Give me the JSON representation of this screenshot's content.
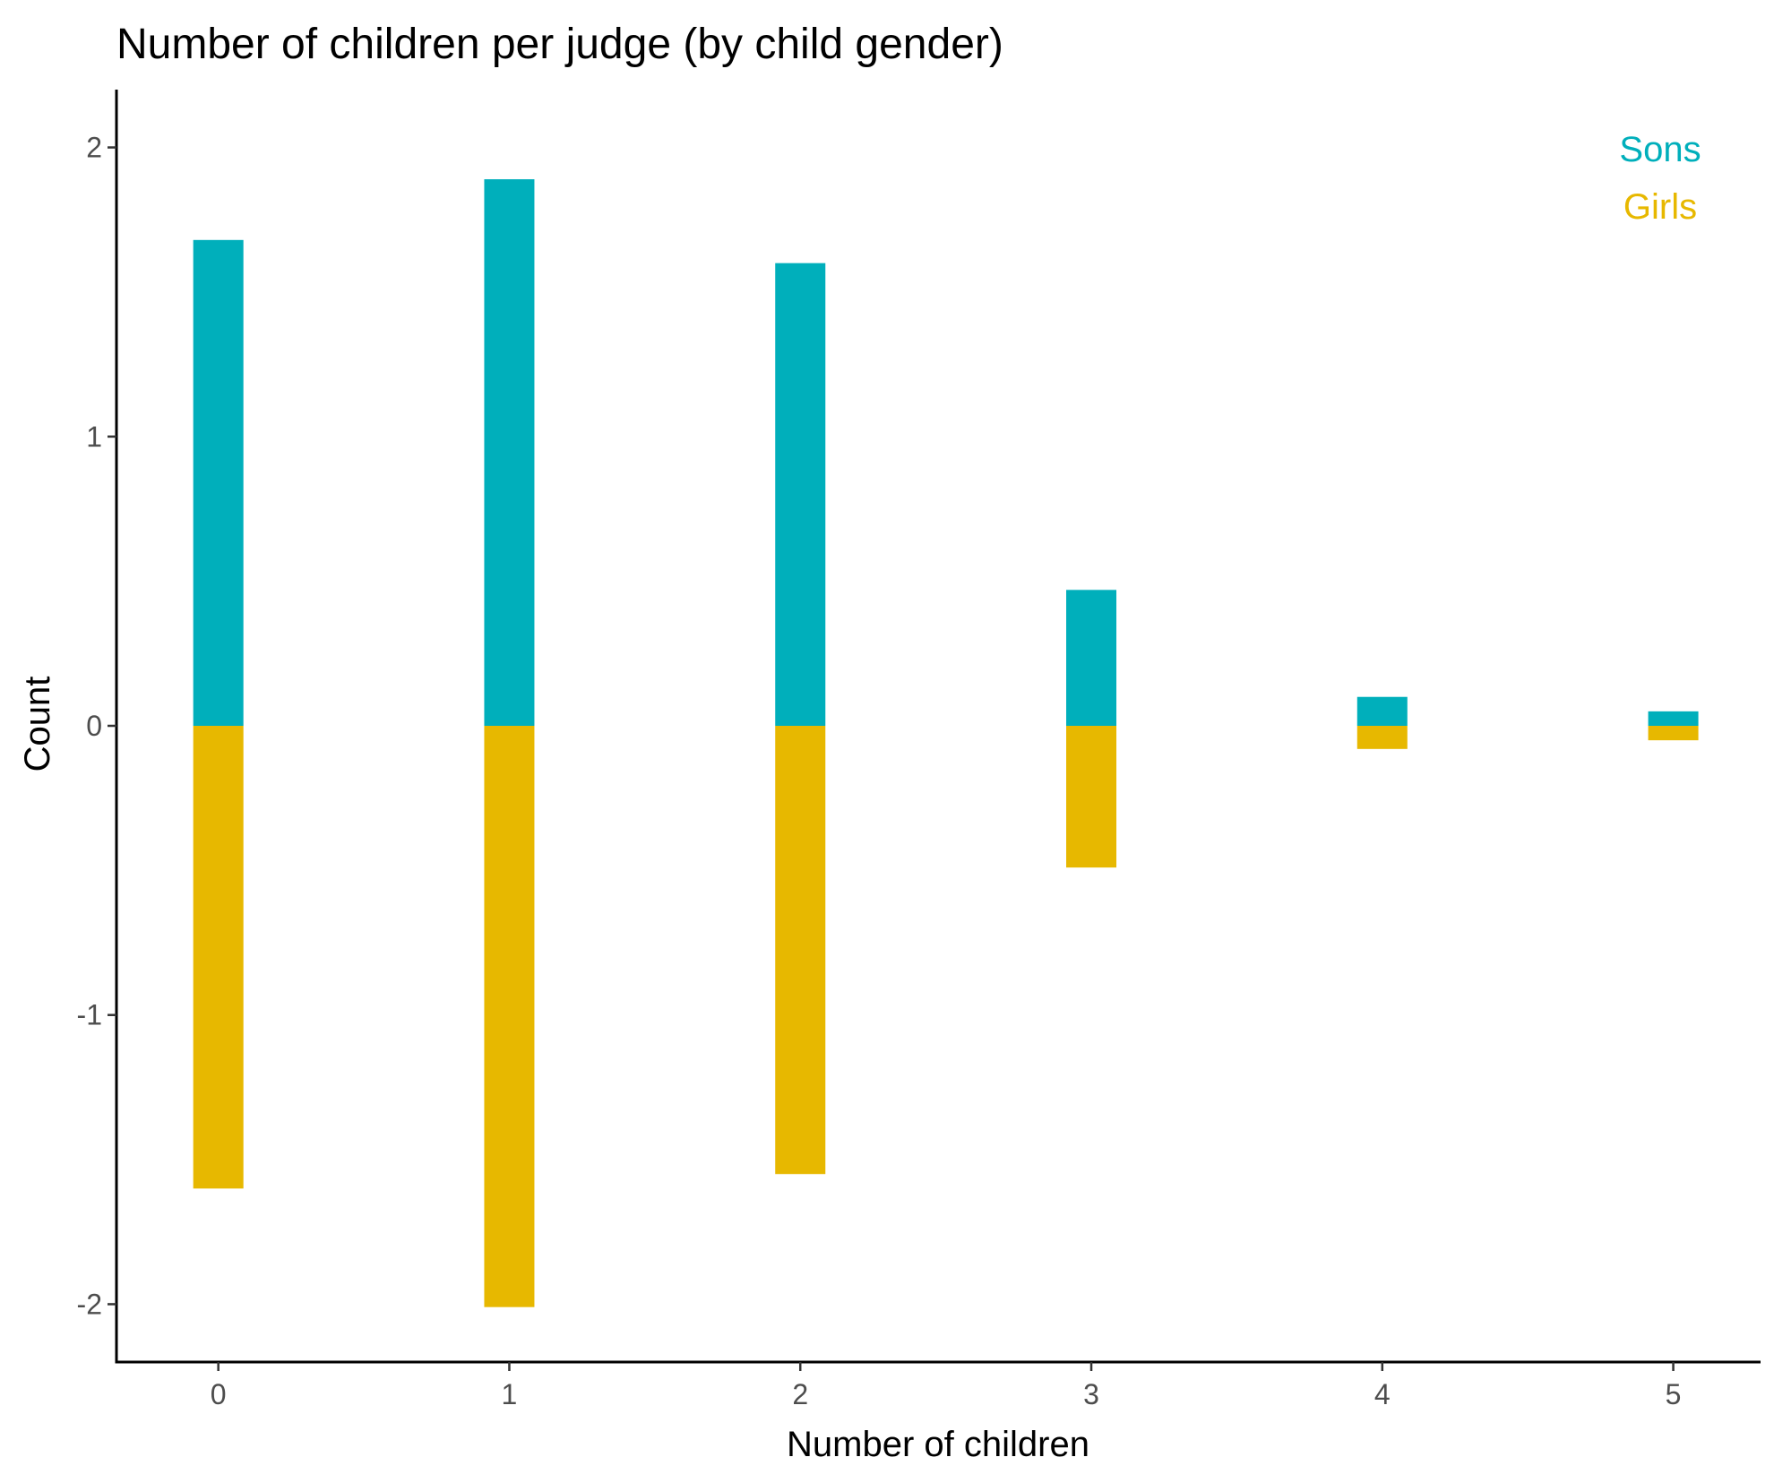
{
  "chart_data": {
    "type": "bar",
    "title": "Number of children per judge (by child gender)",
    "xlabel": "Number of children",
    "ylabel": "Count",
    "x": [
      0,
      1,
      2,
      3,
      4,
      5
    ],
    "x_tick_labels": [
      "0",
      "1",
      "2",
      "3",
      "4",
      "5"
    ],
    "y_ticks": [
      2,
      1,
      0,
      -1,
      -2
    ],
    "y_tick_labels": [
      "2",
      "1",
      "0",
      "-1",
      "-2"
    ],
    "xlim": [
      -0.35,
      5.3
    ],
    "ylim": [
      -2.2,
      2.2
    ],
    "grid": false,
    "legend_position": "top-right",
    "series": [
      {
        "name": "Sons",
        "color": "#00AFBB",
        "values": [
          1.68,
          1.89,
          1.6,
          0.47,
          0.1,
          0.05
        ]
      },
      {
        "name": "Girls",
        "color": "#E7B800",
        "values": [
          -1.6,
          -2.01,
          -1.55,
          -0.49,
          -0.08,
          -0.05
        ]
      }
    ]
  }
}
